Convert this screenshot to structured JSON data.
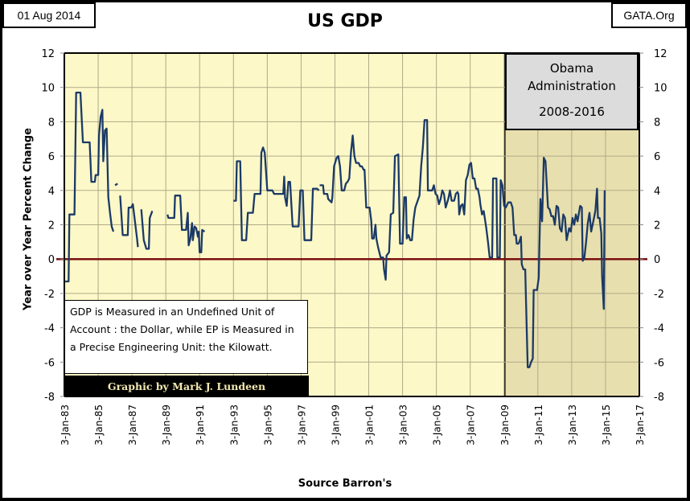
{
  "header": {
    "date": "01 Aug 2014",
    "site": "GATA.Org",
    "title": "US GDP"
  },
  "annotations": {
    "obama_line1": "Obama",
    "obama_line2": "Administration",
    "obama_years": "2008-2016",
    "note": "GDP is Measured in an Undefined Unit of Account : the Dollar, while EP is Measured in a Precise Engineering Unit: the Kilowatt.",
    "credit": "Graphic by Mark J. Lundeen"
  },
  "colors": {
    "plot_bg": "#fdf8c8",
    "shade_bg": "#e8dfae",
    "line": "#1b3a66",
    "zero_line": "#7a1010",
    "grid": "#b0aa88"
  },
  "chart_data": {
    "type": "line",
    "title": "US GDP",
    "xlabel": "Source Barron's",
    "ylabel": "Year over Year Percent Change",
    "ylim": [
      -8,
      12
    ],
    "xlim": [
      1983.0,
      2017.0
    ],
    "yticks": [
      12,
      10,
      8,
      6,
      4,
      2,
      0,
      -2,
      -4,
      -6,
      -8
    ],
    "xtick_labels": [
      "3-Jan-83",
      "3-Jan-85",
      "3-Jan-87",
      "3-Jan-89",
      "3-Jan-91",
      "3-Jan-93",
      "3-Jan-95",
      "3-Jan-97",
      "3-Jan-99",
      "3-Jan-01",
      "3-Jan-03",
      "3-Jan-05",
      "3-Jan-07",
      "3-Jan-09",
      "3-Jan-11",
      "3-Jan-13",
      "3-Jan-15",
      "3-Jan-17"
    ],
    "grid": true,
    "secondary_y_axis": true,
    "shaded_region": {
      "label": "Obama Administration 2008-2016",
      "x_start": 2009.05,
      "x_end": 2017.0
    },
    "series": [
      {
        "name": "US GDP YoY % change",
        "segments": [
          [
            [
              1983.05,
              -1.3
            ],
            [
              1983.25,
              -1.3
            ],
            [
              1983.3,
              2.6
            ],
            [
              1983.6,
              2.6
            ],
            [
              1983.7,
              9.7
            ],
            [
              1983.95,
              9.7
            ],
            [
              1984.1,
              6.8
            ],
            [
              1984.5,
              6.8
            ],
            [
              1984.6,
              4.5
            ],
            [
              1984.8,
              4.5
            ],
            [
              1984.85,
              4.9
            ],
            [
              1985.0,
              4.9
            ],
            [
              1985.05,
              7.2
            ],
            [
              1985.15,
              8.3
            ],
            [
              1985.25,
              8.7
            ],
            [
              1985.3,
              5.7
            ],
            [
              1985.4,
              7.5
            ],
            [
              1985.5,
              7.6
            ],
            [
              1985.6,
              3.6
            ],
            [
              1985.7,
              2.7
            ],
            [
              1985.8,
              1.9
            ],
            [
              1985.9,
              1.6
            ]
          ],
          [
            [
              1986.0,
              4.3
            ],
            [
              1986.15,
              4.4
            ]
          ],
          [
            [
              1986.3,
              3.7
            ],
            [
              1986.45,
              1.4
            ],
            [
              1986.75,
              1.4
            ],
            [
              1986.8,
              3.0
            ],
            [
              1986.95,
              3.0
            ],
            [
              1987.05,
              3.2
            ],
            [
              1987.15,
              2.4
            ],
            [
              1987.3,
              1.2
            ],
            [
              1987.35,
              0.7
            ]
          ],
          [
            [
              1987.55,
              2.9
            ],
            [
              1987.7,
              1.1
            ],
            [
              1987.85,
              0.6
            ],
            [
              1988.0,
              0.6
            ],
            [
              1988.05,
              2.4
            ],
            [
              1988.2,
              2.8
            ]
          ],
          [
            [
              1989.1,
              2.6
            ],
            [
              1989.15,
              2.4
            ],
            [
              1989.5,
              2.4
            ],
            [
              1989.55,
              3.7
            ],
            [
              1989.85,
              3.7
            ],
            [
              1989.95,
              1.7
            ],
            [
              1990.2,
              1.7
            ],
            [
              1990.3,
              2.7
            ],
            [
              1990.35,
              0.8
            ],
            [
              1990.45,
              1.2
            ],
            [
              1990.55,
              2.1
            ],
            [
              1990.6,
              1.1
            ],
            [
              1990.7,
              1.9
            ],
            [
              1990.8,
              1.8
            ],
            [
              1990.9,
              1.3
            ],
            [
              1990.95,
              1.6
            ],
            [
              1991.0,
              0.4
            ],
            [
              1991.1,
              0.4
            ],
            [
              1991.15,
              1.7
            ],
            [
              1991.3,
              1.6
            ]
          ],
          [
            [
              1993.0,
              3.4
            ],
            [
              1993.15,
              3.4
            ],
            [
              1993.2,
              5.7
            ],
            [
              1993.4,
              5.7
            ],
            [
              1993.5,
              1.1
            ],
            [
              1993.75,
              1.1
            ],
            [
              1993.85,
              2.7
            ],
            [
              1994.15,
              2.7
            ],
            [
              1994.25,
              3.8
            ],
            [
              1994.6,
              3.8
            ],
            [
              1994.65,
              6.2
            ],
            [
              1994.75,
              6.5
            ],
            [
              1994.85,
              6.2
            ],
            [
              1995.0,
              4.0
            ],
            [
              1995.3,
              4.0
            ],
            [
              1995.4,
              3.8
            ],
            [
              1995.95,
              3.8
            ],
            [
              1996.0,
              4.8
            ],
            [
              1996.05,
              3.6
            ],
            [
              1996.15,
              3.1
            ],
            [
              1996.25,
              4.5
            ],
            [
              1996.35,
              4.5
            ],
            [
              1996.5,
              1.9
            ],
            [
              1996.85,
              1.9
            ],
            [
              1996.95,
              4.0
            ],
            [
              1997.1,
              4.0
            ],
            [
              1997.2,
              1.1
            ],
            [
              1997.6,
              1.1
            ],
            [
              1997.7,
              4.1
            ],
            [
              1997.95,
              4.1
            ],
            [
              1998.05,
              4.0
            ]
          ],
          [
            [
              1998.1,
              4.3
            ],
            [
              1998.3,
              4.3
            ],
            [
              1998.35,
              3.8
            ],
            [
              1998.55,
              3.8
            ],
            [
              1998.6,
              3.5
            ],
            [
              1998.8,
              3.3
            ],
            [
              1998.85,
              3.6
            ],
            [
              1998.95,
              5.4
            ],
            [
              1999.1,
              5.9
            ],
            [
              1999.2,
              6.0
            ],
            [
              1999.3,
              5.4
            ],
            [
              1999.4,
              4.0
            ],
            [
              1999.55,
              4.0
            ],
            [
              1999.65,
              4.4
            ],
            [
              1999.75,
              4.5
            ],
            [
              1999.85,
              4.7
            ],
            [
              1999.95,
              6.2
            ],
            [
              2000.05,
              7.2
            ],
            [
              2000.15,
              6.0
            ],
            [
              2000.25,
              5.6
            ],
            [
              2000.4,
              5.6
            ],
            [
              2000.5,
              5.4
            ],
            [
              2000.6,
              5.4
            ],
            [
              2000.7,
              5.2
            ],
            [
              2000.75,
              5.2
            ],
            [
              2000.85,
              3.0
            ],
            [
              2001.05,
              3.0
            ],
            [
              2001.15,
              2.2
            ],
            [
              2001.2,
              1.2
            ],
            [
              2001.3,
              1.2
            ],
            [
              2001.4,
              2.0
            ],
            [
              2001.45,
              1.2
            ],
            [
              2001.55,
              0.7
            ],
            [
              2001.7,
              0.1
            ],
            [
              2001.85,
              0.1
            ],
            [
              2001.9,
              -0.6
            ],
            [
              2002.0,
              -1.2
            ],
            [
              2002.05,
              0.2
            ],
            [
              2002.2,
              0.4
            ],
            [
              2002.3,
              2.6
            ],
            [
              2002.45,
              2.7
            ],
            [
              2002.55,
              6.0
            ],
            [
              2002.75,
              6.1
            ],
            [
              2002.85,
              0.9
            ],
            [
              2003.0,
              0.9
            ],
            [
              2003.1,
              3.6
            ],
            [
              2003.2,
              3.6
            ],
            [
              2003.25,
              1.2
            ],
            [
              2003.35,
              1.4
            ],
            [
              2003.45,
              1.1
            ],
            [
              2003.55,
              1.1
            ],
            [
              2003.65,
              2.3
            ],
            [
              2003.75,
              3.0
            ],
            [
              2004.0,
              3.7
            ],
            [
              2004.1,
              5.4
            ],
            [
              2004.2,
              6.5
            ],
            [
              2004.3,
              8.1
            ],
            [
              2004.45,
              8.1
            ],
            [
              2004.5,
              4.0
            ],
            [
              2004.75,
              4.0
            ],
            [
              2004.85,
              4.3
            ],
            [
              2004.95,
              3.8
            ],
            [
              2005.05,
              3.7
            ],
            [
              2005.15,
              3.2
            ],
            [
              2005.25,
              3.5
            ],
            [
              2005.35,
              4.0
            ],
            [
              2005.45,
              3.8
            ],
            [
              2005.55,
              3.0
            ],
            [
              2005.7,
              3.5
            ],
            [
              2005.8,
              4.0
            ],
            [
              2005.9,
              3.4
            ],
            [
              2006.05,
              3.4
            ],
            [
              2006.15,
              3.8
            ],
            [
              2006.25,
              3.9
            ],
            [
              2006.3,
              3.8
            ],
            [
              2006.35,
              2.6
            ],
            [
              2006.45,
              3.1
            ],
            [
              2006.55,
              3.2
            ],
            [
              2006.65,
              2.6
            ],
            [
              2006.75,
              4.6
            ],
            [
              2006.85,
              4.9
            ],
            [
              2006.95,
              5.5
            ],
            [
              2007.05,
              5.6
            ],
            [
              2007.15,
              4.7
            ],
            [
              2007.25,
              4.7
            ],
            [
              2007.35,
              4.1
            ],
            [
              2007.45,
              4.1
            ],
            [
              2007.55,
              3.6
            ],
            [
              2007.6,
              3.2
            ],
            [
              2007.7,
              2.6
            ],
            [
              2007.8,
              2.8
            ],
            [
              2007.95,
              1.8
            ],
            [
              2008.05,
              1.0
            ],
            [
              2008.15,
              0.1
            ],
            [
              2008.3,
              0.1
            ],
            [
              2008.35,
              4.7
            ],
            [
              2008.55,
              4.7
            ],
            [
              2008.6,
              0.1
            ],
            [
              2008.75,
              0.1
            ],
            [
              2008.8,
              4.6
            ],
            [
              2008.9,
              4.3
            ],
            [
              2009.0,
              3.1
            ],
            [
              2009.1,
              3.0
            ],
            [
              2009.25,
              3.3
            ],
            [
              2009.4,
              3.3
            ],
            [
              2009.5,
              3.0
            ],
            [
              2009.6,
              1.4
            ],
            [
              2009.7,
              1.4
            ],
            [
              2009.75,
              0.9
            ],
            [
              2009.85,
              0.9
            ],
            [
              2009.9,
              1.0
            ],
            [
              2010.0,
              1.3
            ],
            [
              2010.05,
              -0.3
            ],
            [
              2010.15,
              -0.6
            ],
            [
              2010.25,
              -0.6
            ],
            [
              2010.35,
              -4.5
            ],
            [
              2010.4,
              -6.3
            ],
            [
              2010.5,
              -6.3
            ],
            [
              2010.6,
              -6.0
            ],
            [
              2010.7,
              -5.8
            ],
            [
              2010.75,
              -1.8
            ],
            [
              2010.95,
              -1.8
            ],
            [
              2011.05,
              -1.1
            ],
            [
              2011.15,
              3.5
            ],
            [
              2011.25,
              2.2
            ],
            [
              2011.35,
              5.9
            ],
            [
              2011.45,
              5.7
            ],
            [
              2011.6,
              3.0
            ],
            [
              2011.7,
              2.9
            ],
            [
              2011.8,
              2.5
            ],
            [
              2011.9,
              2.5
            ],
            [
              2012.0,
              2.0
            ],
            [
              2012.1,
              3.1
            ],
            [
              2012.2,
              3.0
            ],
            [
              2012.3,
              1.8
            ],
            [
              2012.4,
              1.6
            ],
            [
              2012.5,
              2.6
            ],
            [
              2012.6,
              2.4
            ],
            [
              2012.7,
              1.1
            ],
            [
              2012.85,
              1.8
            ],
            [
              2012.95,
              1.6
            ],
            [
              2013.05,
              2.4
            ],
            [
              2013.15,
              2.0
            ],
            [
              2013.25,
              2.6
            ],
            [
              2013.35,
              2.2
            ],
            [
              2013.5,
              3.1
            ],
            [
              2013.6,
              3.0
            ],
            [
              2013.65,
              -0.1
            ],
            [
              2013.75,
              0.1
            ],
            [
              2013.85,
              1.0
            ],
            [
              2013.95,
              2.1
            ],
            [
              2014.05,
              2.7
            ],
            [
              2014.15,
              1.6
            ],
            [
              2014.3,
              2.3
            ],
            [
              2014.4,
              2.8
            ],
            [
              2014.5,
              4.1
            ],
            [
              2014.55,
              2.4
            ],
            [
              2014.65,
              2.4
            ],
            [
              2014.75,
              1.5
            ],
            [
              2014.8,
              -1.0
            ],
            [
              2014.9,
              -2.9
            ],
            [
              2014.95,
              4.0
            ]
          ]
        ]
      },
      {
        "name": "Zero line",
        "values_y": 0
      }
    ]
  },
  "axes": {
    "xlabel": "Source Barron's",
    "ylabel": "Year over Year Percent Change"
  }
}
